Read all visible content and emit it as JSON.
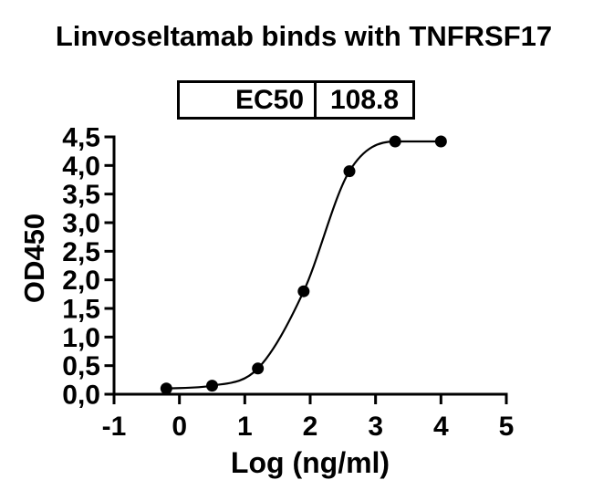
{
  "chart_data": {
    "type": "scatter",
    "title": "Linvoseltamab binds with TNFRSF17",
    "xlabel": "Log (ng/ml)",
    "ylabel": "OD450",
    "xlim": [
      -1,
      5
    ],
    "ylim": [
      0,
      4.5
    ],
    "x_ticks": [
      -1,
      0,
      1,
      2,
      3,
      4,
      5
    ],
    "x_tick_labels": [
      "-1",
      "0",
      "1",
      "2",
      "3",
      "4",
      "5"
    ],
    "y_ticks": [
      0,
      0.5,
      1,
      1.5,
      2,
      2.5,
      3,
      3.5,
      4,
      4.5
    ],
    "y_tick_labels": [
      "0,0",
      "0,5",
      "1,0",
      "1,5",
      "2,0",
      "2,5",
      "3,0",
      "3,5",
      "4,0",
      "4,5"
    ],
    "grid": false,
    "legend": "none",
    "ec50_table": {
      "label": "EC50",
      "value": "108.8"
    },
    "series": [
      {
        "marker": "filled-circle",
        "color": "#000000",
        "line": "smooth-sigmoid-fit",
        "x": [
          -0.2,
          0.5,
          1.2,
          1.9,
          2.6,
          3.3,
          4.0
        ],
        "y": [
          0.1,
          0.15,
          0.45,
          1.8,
          3.9,
          4.42,
          4.42
        ]
      }
    ]
  },
  "colors": {
    "foreground": "#000000",
    "background": "#ffffff"
  }
}
